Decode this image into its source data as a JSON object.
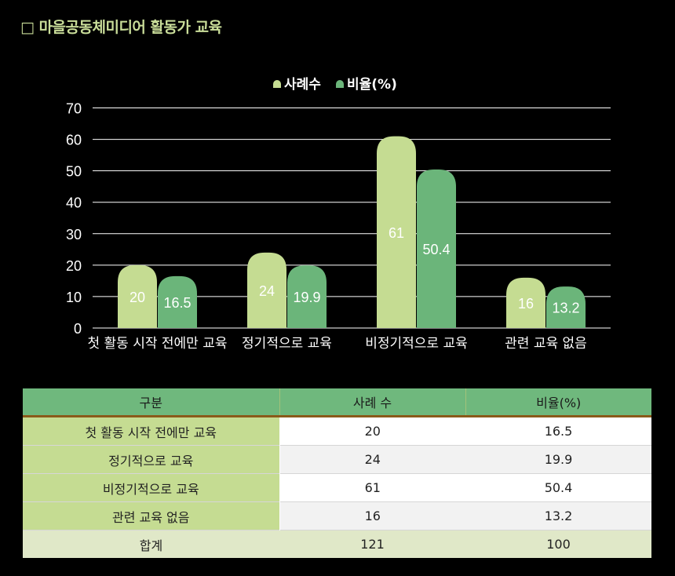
{
  "page": {
    "title": "□ 마을공동체미디어 활동가 교육"
  },
  "colors": {
    "series1": "#c5dc92",
    "series2": "#6bb57a",
    "background": "#000000",
    "grid": "#ffffff"
  },
  "chart_data": {
    "type": "bar",
    "categories": [
      "첫 활동 시작 전에만 교육",
      "정기적으로 교육",
      "비정기적으로 교육",
      "관련 교육 없음"
    ],
    "series": [
      {
        "name": "사례수",
        "values": [
          20,
          24,
          61,
          16
        ]
      },
      {
        "name": "비율(%)",
        "values": [
          16.5,
          19.9,
          50.4,
          13.2
        ]
      }
    ],
    "yticks": [
      "0",
      "10",
      "20",
      "30",
      "40",
      "50",
      "60",
      "70"
    ],
    "ylim": [
      0,
      70
    ],
    "grid": true,
    "legend": "top"
  },
  "table": {
    "headers": [
      "구분",
      "사례 수",
      "비율(%)"
    ],
    "rows": [
      [
        "첫 활동 시작 전에만 교육",
        "20",
        "16.5"
      ],
      [
        "정기적으로 교육",
        "24",
        "19.9"
      ],
      [
        "비정기적으로 교육",
        "61",
        "50.4"
      ],
      [
        "관련 교육 없음",
        "16",
        "13.2"
      ]
    ],
    "total": [
      "합계",
      "121",
      "100"
    ]
  }
}
